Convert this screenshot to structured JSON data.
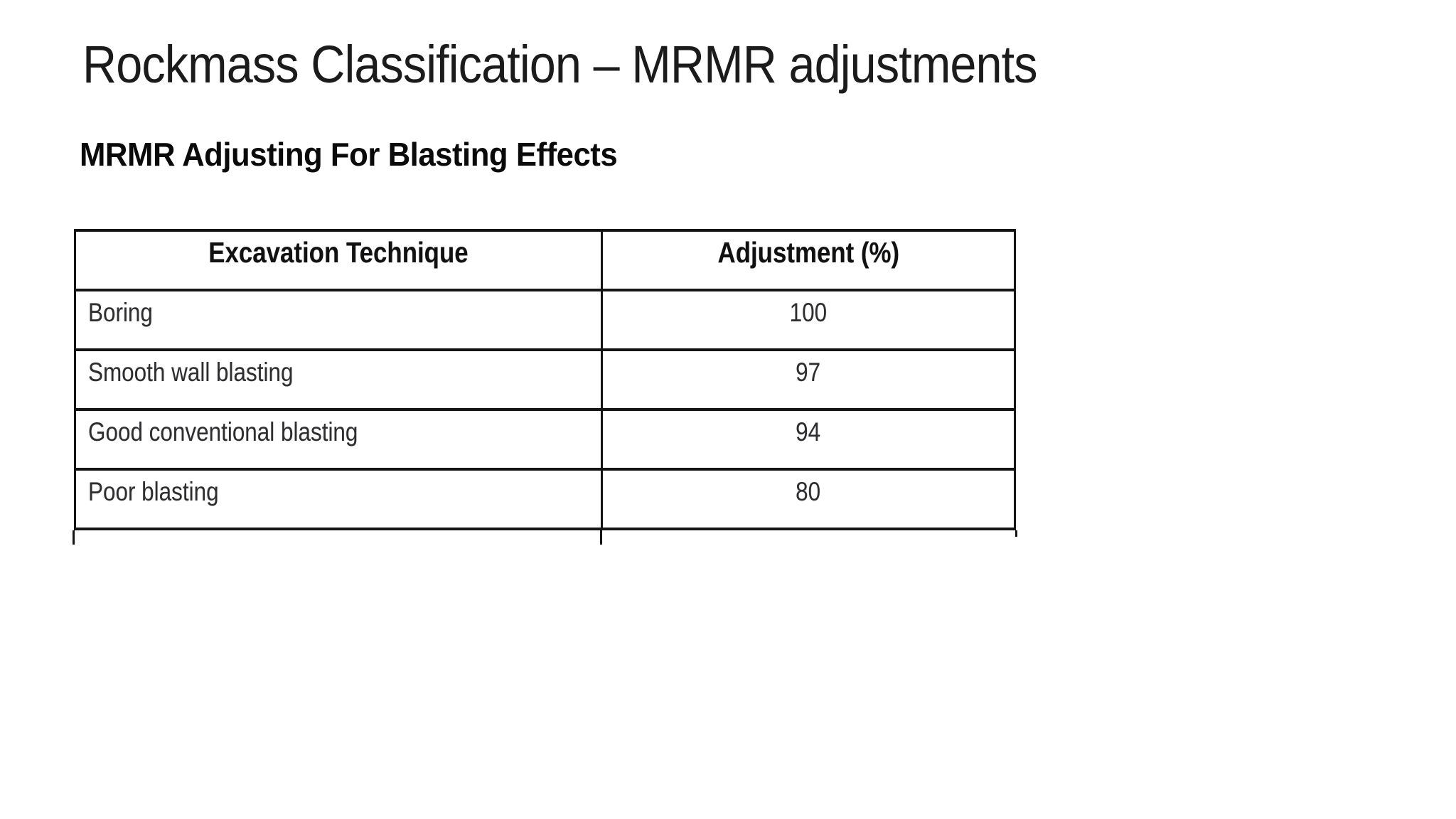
{
  "slide": {
    "title": "Rockmass Classification – MRMR adjustments",
    "subtitle": "MRMR Adjusting For Blasting Effects",
    "table": {
      "headers": [
        "Excavation Technique",
        "Adjustment (%)"
      ],
      "rows": [
        [
          "Boring",
          "100"
        ],
        [
          "Smooth wall blasting",
          "97"
        ],
        [
          "Good conventional blasting",
          "94"
        ],
        [
          "Poor blasting",
          "80"
        ]
      ]
    }
  }
}
